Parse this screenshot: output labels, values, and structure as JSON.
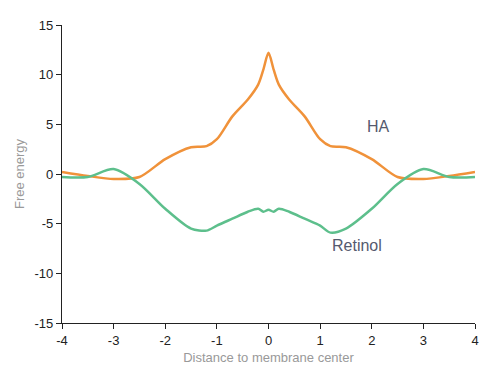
{
  "chart_data": {
    "type": "line",
    "x_label": "Distance to membrane center",
    "y_label": "Free energy",
    "x": [
      -4,
      -3.5,
      -3,
      -2.5,
      -2,
      -1.5,
      -1.2,
      -1,
      -0.7,
      -0.4,
      -0.2,
      -0.1,
      0,
      0.1,
      0.2,
      0.4,
      0.7,
      1,
      1.2,
      1.5,
      2,
      2.5,
      3,
      3.5,
      4
    ],
    "series": [
      {
        "name": "HA",
        "color": "#f0923a",
        "values": [
          0.2,
          -0.2,
          -0.5,
          -0.3,
          1.5,
          2.7,
          2.8,
          3.5,
          5.8,
          7.5,
          9,
          10.5,
          12.2,
          10.5,
          9,
          7.5,
          5.8,
          3.5,
          2.8,
          2.7,
          1.5,
          -0.3,
          -0.5,
          -0.2,
          0.2
        ]
      },
      {
        "name": "Retinol",
        "color": "#5dbf8c",
        "values": [
          -0.3,
          -0.3,
          0.5,
          -1,
          -3.5,
          -5.5,
          -5.7,
          -5.2,
          -4.5,
          -3.8,
          -3.5,
          -3.8,
          -3.6,
          -3.8,
          -3.5,
          -3.8,
          -4.5,
          -5.2,
          -5.9,
          -5.5,
          -3.5,
          -1,
          0.5,
          -0.3,
          -0.3
        ]
      }
    ],
    "xlim": [
      -4,
      4
    ],
    "xticks": [
      -4,
      -3,
      -2,
      -1,
      0,
      1,
      2,
      3,
      4
    ],
    "ylim": [
      -15,
      15
    ],
    "yticks": [
      -15,
      -10,
      -5,
      0,
      5,
      10,
      15
    ],
    "grid": false
  }
}
